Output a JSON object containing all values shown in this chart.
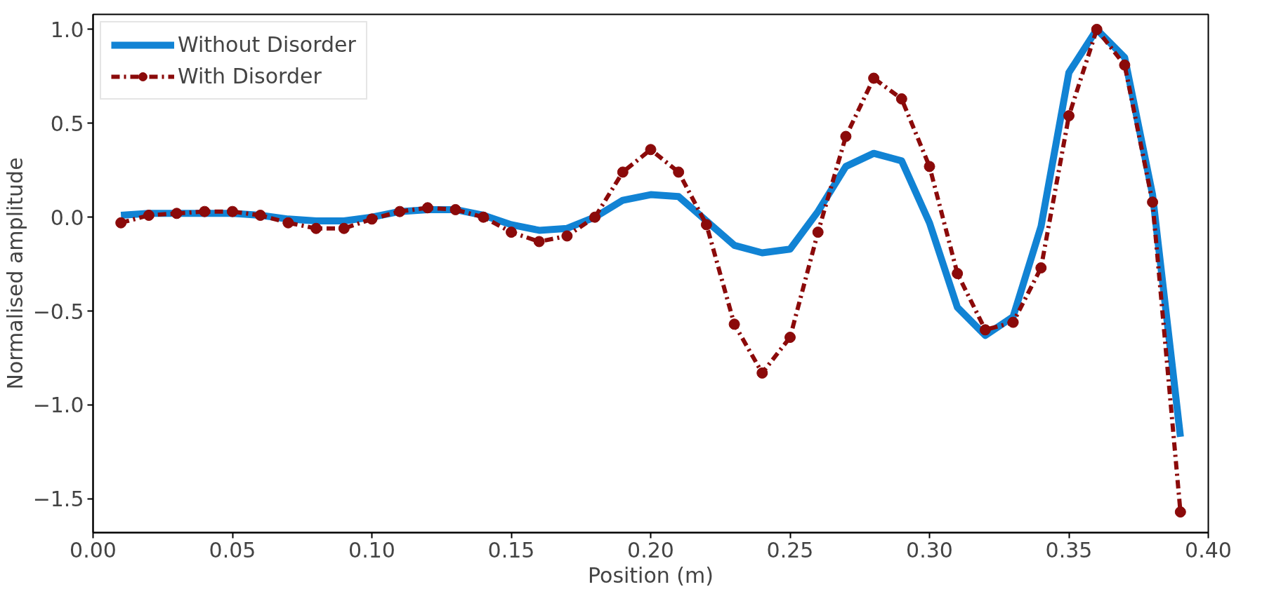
{
  "chart_data": {
    "type": "line",
    "xlabel": "Position (m)",
    "ylabel": "Normalised amplitude",
    "x": [
      0.01,
      0.02,
      0.03,
      0.04,
      0.05,
      0.06,
      0.07,
      0.08,
      0.09,
      0.1,
      0.11,
      0.12,
      0.13,
      0.14,
      0.15,
      0.16,
      0.17,
      0.18,
      0.19,
      0.2,
      0.21,
      0.22,
      0.23,
      0.24,
      0.25,
      0.26,
      0.27,
      0.28,
      0.29,
      0.3,
      0.31,
      0.32,
      0.33,
      0.34,
      0.35,
      0.36,
      0.37,
      0.38,
      0.39
    ],
    "series": [
      {
        "name": "Without Disorder",
        "color": "#1183d4",
        "line_style": "solid",
        "marker": "none",
        "values": [
          0.01,
          0.02,
          0.02,
          0.02,
          0.02,
          0.01,
          -0.01,
          -0.02,
          -0.02,
          0.0,
          0.03,
          0.04,
          0.04,
          0.01,
          -0.04,
          -0.07,
          -0.06,
          0.0,
          0.09,
          0.12,
          0.11,
          -0.02,
          -0.15,
          -0.19,
          -0.17,
          0.03,
          0.27,
          0.34,
          0.3,
          -0.03,
          -0.48,
          -0.63,
          -0.53,
          -0.05,
          0.77,
          1.0,
          0.85,
          0.12,
          -1.17
        ]
      },
      {
        "name": "With Disorder",
        "color": "#8b0a0a",
        "line_style": "dashdot",
        "marker": "circle",
        "values": [
          -0.03,
          0.01,
          0.02,
          0.03,
          0.03,
          0.01,
          -0.03,
          -0.06,
          -0.06,
          -0.01,
          0.03,
          0.05,
          0.04,
          0.0,
          -0.08,
          -0.13,
          -0.1,
          0.0,
          0.24,
          0.36,
          0.24,
          -0.04,
          -0.57,
          -0.83,
          -0.64,
          -0.08,
          0.43,
          0.74,
          0.63,
          0.27,
          -0.3,
          -0.6,
          -0.56,
          -0.27,
          0.54,
          1.0,
          0.81,
          0.08,
          -1.57
        ]
      }
    ],
    "xlim": [
      0.0,
      0.4
    ],
    "ylim": [
      -1.68,
      1.08
    ],
    "xticks": [
      {
        "value": 0.0,
        "label": "0.00"
      },
      {
        "value": 0.05,
        "label": "0.05"
      },
      {
        "value": 0.1,
        "label": "0.10"
      },
      {
        "value": 0.15,
        "label": "0.15"
      },
      {
        "value": 0.2,
        "label": "0.20"
      },
      {
        "value": 0.25,
        "label": "0.25"
      },
      {
        "value": 0.3,
        "label": "0.30"
      },
      {
        "value": 0.35,
        "label": "0.35"
      },
      {
        "value": 0.4,
        "label": "0.40"
      }
    ],
    "yticks": [
      {
        "value": -1.5,
        "label": "−1.5"
      },
      {
        "value": -1.0,
        "label": "−1.0"
      },
      {
        "value": -0.5,
        "label": "−0.5"
      },
      {
        "value": 0.0,
        "label": "0.0"
      },
      {
        "value": 0.5,
        "label": "0.5"
      },
      {
        "value": 1.0,
        "label": "1.0"
      }
    ],
    "grid": false,
    "legend": "top left"
  }
}
